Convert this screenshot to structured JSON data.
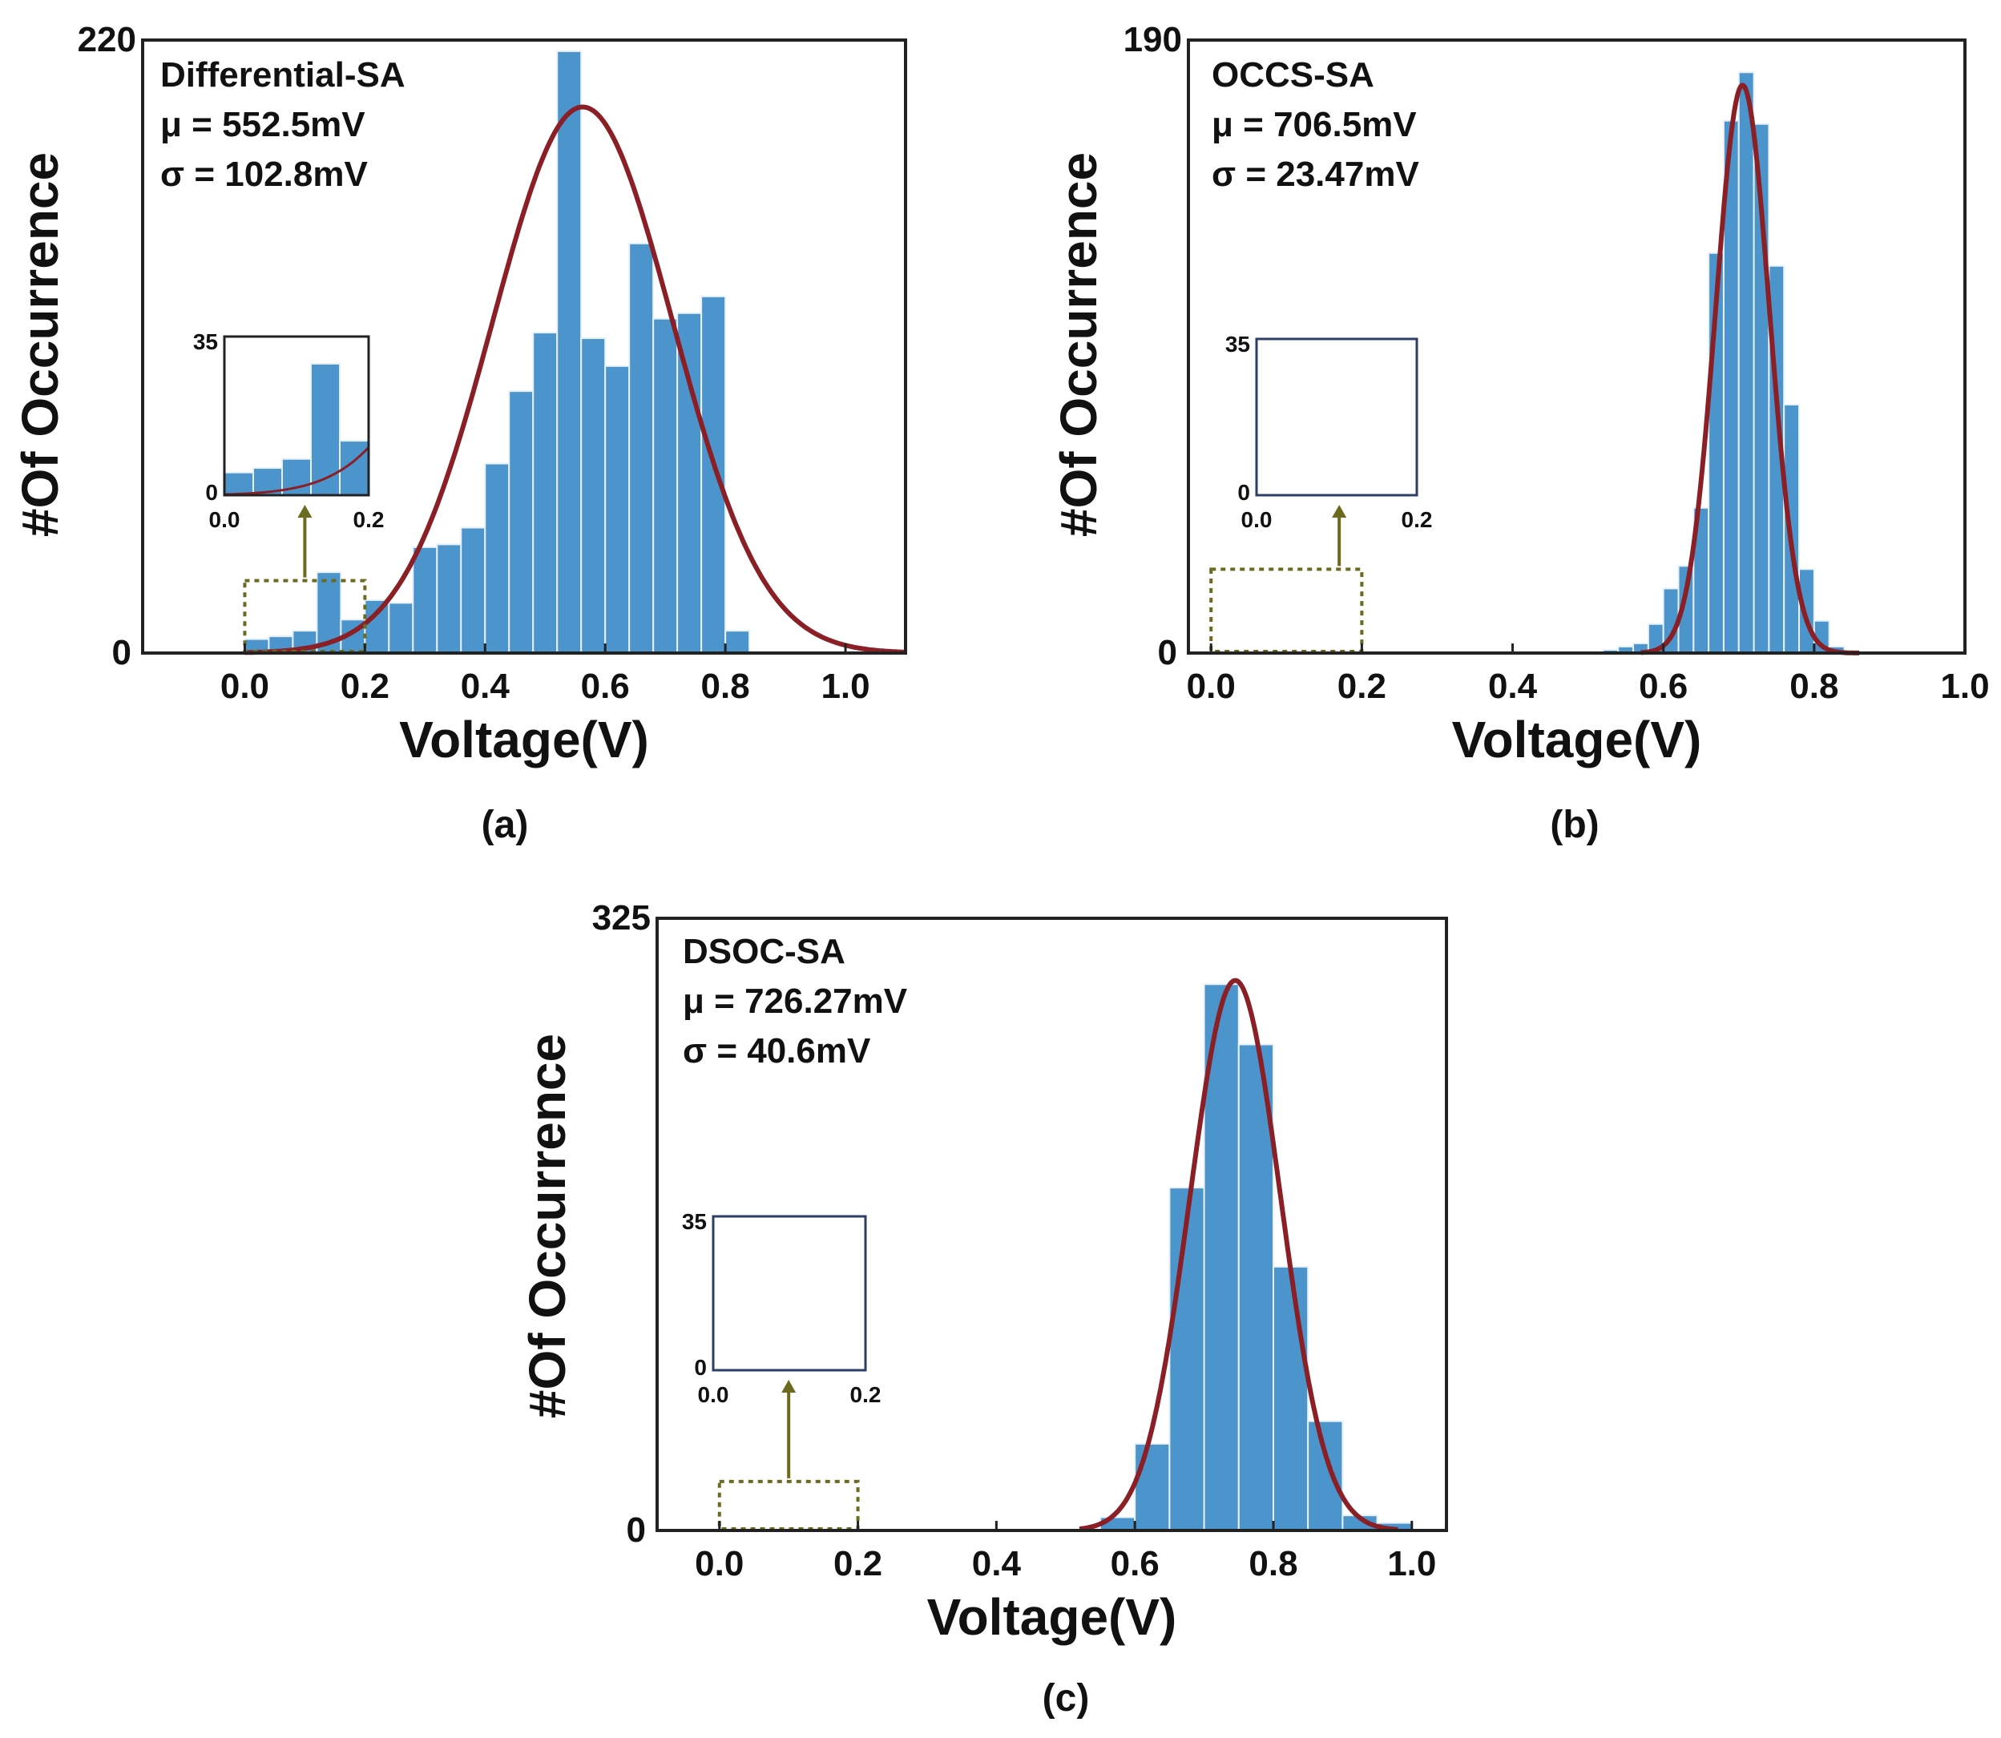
{
  "colors": {
    "bar": "#4b94cc",
    "bar_edge": "#e8f1f8",
    "curve": "#8a1f25",
    "axis": "#222222",
    "inset_frame": "#2d3f66",
    "highlight_box": "#6b6b1f",
    "arrow": "#6b6b1f"
  },
  "chart_data": [
    {
      "type": "bar",
      "panel_label": "(a)",
      "title": "Differential-SA",
      "mean_text": "μ = 552.5mV",
      "std_text": "σ = 102.8mV",
      "xlabel": "Voltage(V)",
      "ylabel": "#Of Occurrence",
      "xlim": [
        -0.17,
        1.1
      ],
      "ylim": [
        0,
        220
      ],
      "xticks": [
        0.0,
        0.2,
        0.4,
        0.6,
        0.8,
        1.0
      ],
      "xtick_labels": [
        "0.0",
        "0.2",
        "0.4",
        "0.6",
        "0.8",
        "1.0"
      ],
      "ytick_labels": [
        "0",
        "220"
      ],
      "bin_width": 0.04,
      "bin_starts": [
        0.0,
        0.04,
        0.08,
        0.12,
        0.16,
        0.2,
        0.24,
        0.28,
        0.32,
        0.36,
        0.4,
        0.44,
        0.48,
        0.52,
        0.56,
        0.6,
        0.64,
        0.68,
        0.72,
        0.76,
        0.8
      ],
      "values": [
        5,
        6,
        8,
        29,
        12,
        19,
        18,
        38,
        39,
        45,
        68,
        94,
        115,
        216,
        113,
        103,
        147,
        120,
        122,
        128,
        8
      ],
      "fit": {
        "type": "normal",
        "mu": 0.5625,
        "sigma": 0.15,
        "peak": 196,
        "x_range": [
          0.0,
          1.1
        ]
      },
      "inset": {
        "ytick_labels": [
          "0",
          "35"
        ],
        "xtick_labels": [
          "0.0",
          "0.2"
        ],
        "xlim": [
          0.0,
          0.2
        ],
        "ylim": [
          0,
          35
        ],
        "show_data": true
      }
    },
    {
      "type": "bar",
      "panel_label": "(b)",
      "title": "OCCS-SA",
      "mean_text": "μ = 706.5mV",
      "std_text": "σ = 23.47mV",
      "xlabel": "Voltage(V)",
      "ylabel": "#Of Occurrence",
      "xlim": [
        -0.03,
        1.0
      ],
      "ylim": [
        0,
        190
      ],
      "xticks": [
        0.0,
        0.2,
        0.4,
        0.6,
        0.8,
        1.0
      ],
      "xtick_labels": [
        "0.0",
        "0.2",
        "0.4",
        "0.6",
        "0.8",
        "1.0"
      ],
      "ytick_labels": [
        "0",
        "190"
      ],
      "bin_width": 0.02,
      "bin_starts": [
        0.52,
        0.54,
        0.56,
        0.58,
        0.6,
        0.62,
        0.64,
        0.66,
        0.68,
        0.7,
        0.72,
        0.74,
        0.76,
        0.78,
        0.8,
        0.82
      ],
      "values": [
        1,
        2,
        3,
        9,
        20,
        27,
        45,
        124,
        165,
        180,
        164,
        120,
        77,
        26,
        10,
        2
      ],
      "fit": {
        "type": "normal",
        "mu": 0.705,
        "sigma": 0.0356,
        "peak": 176,
        "x_range": [
          0.57,
          0.86
        ]
      },
      "inset": {
        "ytick_labels": [
          "0",
          "35"
        ],
        "xtick_labels": [
          "0.0",
          "0.2"
        ],
        "xlim": [
          0.0,
          0.2
        ],
        "ylim": [
          0,
          35
        ],
        "show_data": false
      }
    },
    {
      "type": "bar",
      "panel_label": "(c)",
      "title": "DSOC-SA",
      "mean_text": "μ = 726.27mV",
      "std_text": "σ = 40.6mV",
      "xlabel": "Voltage(V)",
      "ylabel": "#Of Occurrence",
      "xlim": [
        -0.09,
        1.05
      ],
      "ylim": [
        0,
        325
      ],
      "xticks": [
        0.0,
        0.2,
        0.4,
        0.6,
        0.8,
        1.0
      ],
      "xtick_labels": [
        "0.0",
        "0.2",
        "0.4",
        "0.6",
        "0.8",
        "1.0"
      ],
      "ytick_labels": [
        "0",
        "325"
      ],
      "bin_width": 0.05,
      "bin_starts": [
        0.55,
        0.6,
        0.65,
        0.7,
        0.75,
        0.8,
        0.85,
        0.9,
        0.95
      ],
      "values": [
        7,
        46,
        182,
        290,
        258,
        140,
        58,
        8,
        4
      ],
      "fit": {
        "type": "normal",
        "mu": 0.745,
        "sigma": 0.0655,
        "peak": 292,
        "x_range": [
          0.52,
          0.98
        ]
      },
      "inset": {
        "ytick_labels": [
          "0",
          "35"
        ],
        "xtick_labels": [
          "0.0",
          "0.2"
        ],
        "xlim": [
          0.0,
          0.2
        ],
        "ylim": [
          0,
          35
        ],
        "show_data": false
      }
    }
  ]
}
